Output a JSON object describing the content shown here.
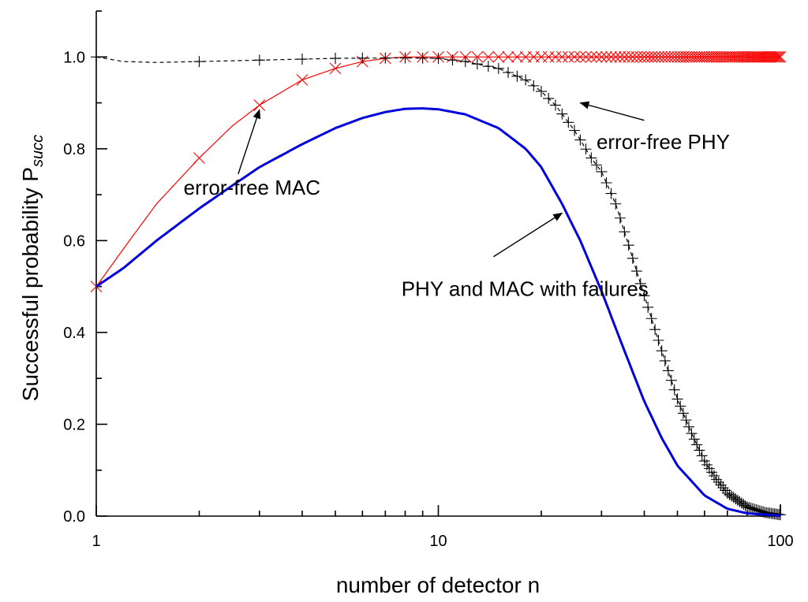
{
  "chart_data": {
    "type": "line",
    "x_scale": "log",
    "xlim": [
      1,
      100
    ],
    "ylim": [
      0,
      1.1
    ],
    "grid": false,
    "legend": "none",
    "xlabel": "number of detector n",
    "ylabel_main": "Successful probability P",
    "ylabel_sub": "succ",
    "x_ticks": [
      {
        "value": 1,
        "label": "1"
      },
      {
        "value": 10,
        "label": "10"
      },
      {
        "value": 100,
        "label": "100"
      }
    ],
    "y_ticks": [
      {
        "value": 0.0,
        "label": "0.0"
      },
      {
        "value": 0.2,
        "label": "0.2"
      },
      {
        "value": 0.4,
        "label": "0.4"
      },
      {
        "value": 0.6,
        "label": "0.6"
      },
      {
        "value": 0.8,
        "label": "0.8"
      },
      {
        "value": 1.0,
        "label": "1.0"
      }
    ],
    "series": [
      {
        "key": "mac",
        "color": "#ff0000",
        "marker": "x",
        "points": [
          [
            1,
            0.5
          ],
          [
            1.25,
            0.6
          ],
          [
            1.5,
            0.68
          ],
          [
            2,
            0.78
          ],
          [
            2.5,
            0.85
          ],
          [
            3,
            0.895
          ],
          [
            4,
            0.95
          ],
          [
            5,
            0.975
          ],
          [
            6,
            0.99
          ],
          [
            7,
            0.997
          ],
          [
            8,
            1.0
          ],
          [
            10,
            1.0
          ],
          [
            20,
            1.0
          ],
          [
            50,
            1.0
          ],
          [
            100,
            1.0
          ]
        ]
      },
      {
        "key": "phy",
        "color": "#000000",
        "marker": "+",
        "dash": "5,4",
        "points": [
          [
            1,
            1.0
          ],
          [
            1.2,
            0.99
          ],
          [
            1.5,
            0.988
          ],
          [
            2,
            0.99
          ],
          [
            3,
            0.993
          ],
          [
            5,
            0.997
          ],
          [
            8,
            0.998
          ],
          [
            10,
            0.997
          ],
          [
            12,
            0.99
          ],
          [
            15,
            0.975
          ],
          [
            18,
            0.95
          ],
          [
            20,
            0.925
          ],
          [
            22,
            0.895
          ],
          [
            25,
            0.84
          ],
          [
            28,
            0.78
          ],
          [
            30,
            0.75
          ],
          [
            33,
            0.68
          ],
          [
            36,
            0.59
          ],
          [
            40,
            0.48
          ],
          [
            45,
            0.36
          ],
          [
            50,
            0.255
          ],
          [
            55,
            0.18
          ],
          [
            60,
            0.12
          ],
          [
            65,
            0.08
          ],
          [
            70,
            0.05
          ],
          [
            80,
            0.02
          ],
          [
            90,
            0.008
          ],
          [
            100,
            0.003
          ]
        ]
      },
      {
        "key": "both",
        "color": "#0000dd",
        "marker": "none",
        "points": [
          [
            1,
            0.5
          ],
          [
            1.2,
            0.54
          ],
          [
            1.5,
            0.6
          ],
          [
            2,
            0.67
          ],
          [
            2.5,
            0.72
          ],
          [
            3,
            0.76
          ],
          [
            4,
            0.81
          ],
          [
            5,
            0.845
          ],
          [
            6,
            0.867
          ],
          [
            7,
            0.88
          ],
          [
            8,
            0.887
          ],
          [
            9,
            0.888
          ],
          [
            10,
            0.886
          ],
          [
            12,
            0.875
          ],
          [
            15,
            0.845
          ],
          [
            18,
            0.8
          ],
          [
            20,
            0.76
          ],
          [
            23,
            0.68
          ],
          [
            26,
            0.6
          ],
          [
            30,
            0.49
          ],
          [
            35,
            0.36
          ],
          [
            40,
            0.25
          ],
          [
            45,
            0.17
          ],
          [
            50,
            0.11
          ],
          [
            60,
            0.045
          ],
          [
            70,
            0.016
          ],
          [
            80,
            0.006
          ],
          [
            100,
            0.001
          ]
        ]
      }
    ],
    "annotations": [
      {
        "key": "ann_mac",
        "text": "error-free MAC",
        "text_at": [
          1.8,
          0.7
        ],
        "arrow_from": [
          2.6,
          0.745
        ],
        "arrow_to": [
          3.0,
          0.885
        ]
      },
      {
        "key": "ann_phy",
        "text": "error-free PHY",
        "text_at": [
          29,
          0.8
        ],
        "arrow_from": [
          40,
          0.862
        ],
        "arrow_to": [
          26,
          0.9
        ]
      },
      {
        "key": "ann_both",
        "text": "PHY and MAC with failures",
        "text_at": [
          7.8,
          0.48
        ],
        "arrow_from": [
          14.5,
          0.565
        ],
        "arrow_to": [
          23,
          0.66
        ]
      }
    ]
  }
}
